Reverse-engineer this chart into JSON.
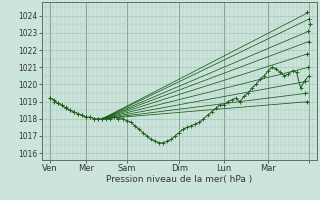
{
  "title": "Pression niveau de la mer( hPa )",
  "ylabel_ticks": [
    1016,
    1017,
    1018,
    1019,
    1020,
    1021,
    1022,
    1023,
    1024
  ],
  "ylim": [
    1015.6,
    1024.8
  ],
  "xlim": [
    0.0,
    6.8
  ],
  "xtick_positions": [
    0.2,
    1.1,
    2.1,
    3.4,
    4.5,
    5.6,
    6.6
  ],
  "xtick_labels": [
    "Ven",
    "Mer",
    "Sam",
    "Dim",
    "Lun",
    "Mar",
    ""
  ],
  "grid_color": "#9fbfaf",
  "bg_color": "#cce5dc",
  "line_color": "#1a5c1a",
  "marker_color": "#1a5c1a",
  "vline_x": [
    0.2,
    1.1,
    2.1,
    3.4,
    4.5,
    5.6,
    6.6
  ],
  "fan_lines": [
    [
      1.5,
      1018.0,
      6.6,
      1024.2
    ],
    [
      1.5,
      1018.0,
      6.6,
      1023.8
    ],
    [
      1.5,
      1018.0,
      6.6,
      1023.1
    ],
    [
      1.5,
      1018.0,
      6.6,
      1022.5
    ],
    [
      1.5,
      1018.0,
      6.6,
      1021.8
    ],
    [
      1.5,
      1018.0,
      6.6,
      1021.0
    ],
    [
      1.5,
      1018.0,
      6.6,
      1020.2
    ],
    [
      1.5,
      1018.0,
      6.6,
      1019.5
    ],
    [
      1.5,
      1018.0,
      6.6,
      1019.0
    ]
  ],
  "main_curve_x": [
    0.2,
    0.3,
    0.4,
    0.5,
    0.6,
    0.7,
    0.8,
    0.9,
    1.0,
    1.1,
    1.2,
    1.3,
    1.4,
    1.5,
    1.6,
    1.7,
    1.8,
    1.9,
    2.0,
    2.1,
    2.2,
    2.3,
    2.4,
    2.5,
    2.6,
    2.7,
    2.8,
    2.9,
    3.0,
    3.1,
    3.2,
    3.3,
    3.4,
    3.5,
    3.6,
    3.7,
    3.8,
    3.9,
    4.0,
    4.1,
    4.2,
    4.3,
    4.4,
    4.5,
    4.6,
    4.7,
    4.8,
    4.9,
    5.0,
    5.1,
    5.2,
    5.3,
    5.4,
    5.5,
    5.6,
    5.7,
    5.8,
    5.9,
    6.0,
    6.1,
    6.2,
    6.3,
    6.4,
    6.5,
    6.6
  ],
  "main_curve_y": [
    1019.2,
    1019.1,
    1018.9,
    1018.8,
    1018.6,
    1018.5,
    1018.4,
    1018.3,
    1018.2,
    1018.1,
    1018.1,
    1018.0,
    1018.0,
    1018.0,
    1018.0,
    1018.0,
    1018.1,
    1018.0,
    1018.0,
    1017.9,
    1017.8,
    1017.6,
    1017.4,
    1017.2,
    1017.0,
    1016.8,
    1016.7,
    1016.6,
    1016.6,
    1016.7,
    1016.8,
    1017.0,
    1017.2,
    1017.4,
    1017.5,
    1017.6,
    1017.7,
    1017.8,
    1018.0,
    1018.2,
    1018.4,
    1018.6,
    1018.8,
    1018.8,
    1019.0,
    1019.1,
    1019.2,
    1019.0,
    1019.3,
    1019.5,
    1019.8,
    1020.0,
    1020.3,
    1020.5,
    1020.8,
    1021.0,
    1020.9,
    1020.7,
    1020.5,
    1020.6,
    1020.8,
    1020.7,
    1019.8,
    1020.2,
    1020.5
  ],
  "end_markers": [
    [
      6.55,
      1024.2
    ],
    [
      6.6,
      1023.8
    ],
    [
      6.62,
      1023.5
    ],
    [
      6.58,
      1023.1
    ],
    [
      6.6,
      1022.5
    ],
    [
      6.55,
      1021.8
    ],
    [
      6.58,
      1021.0
    ],
    [
      6.5,
      1020.2
    ],
    [
      6.52,
      1019.5
    ],
    [
      6.55,
      1019.0
    ]
  ],
  "start_markers": [
    [
      0.2,
      1019.2
    ],
    [
      0.3,
      1019.0
    ],
    [
      0.4,
      1018.9
    ],
    [
      0.5,
      1018.8
    ],
    [
      0.6,
      1018.7
    ],
    [
      0.7,
      1018.5
    ],
    [
      0.8,
      1018.4
    ],
    [
      0.9,
      1018.3
    ],
    [
      1.0,
      1018.2
    ],
    [
      1.1,
      1018.1
    ],
    [
      1.2,
      1018.1
    ],
    [
      1.3,
      1018.0
    ],
    [
      1.4,
      1018.0
    ],
    [
      1.5,
      1018.0
    ]
  ]
}
